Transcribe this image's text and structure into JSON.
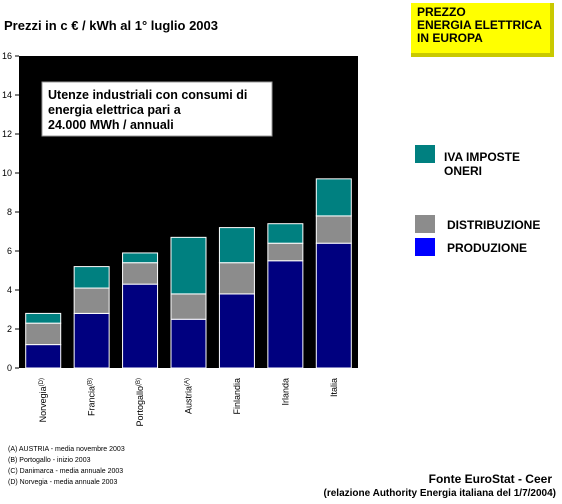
{
  "title": "Prezzi in c € / kWh al 1° luglio 2003",
  "badge": [
    "PREZZO",
    "ENERGIA ELETTRICA",
    "IN EUROPA"
  ],
  "annotation": [
    "Utenze industriali con consumi di",
    "energia elettrica pari a",
    "24.000 MWh / annuali"
  ],
  "notes": [
    "(A) AUSTRIA - media novembre 2003",
    "(B) Portogallo - inizio 2003",
    "(C) Danimarca - media annuale 2003",
    "(D) Norvegia - media annuale 2003"
  ],
  "source": "Fonte EuroStat - Ceer",
  "source_detail": "(relazione Authority Energia italiana del 1/7/2004)",
  "chart_data": {
    "type": "bar",
    "stacked": true,
    "title": "",
    "xlabel": "",
    "ylabel": "",
    "ylim": [
      0,
      16
    ],
    "yticks": [
      0,
      2,
      4,
      6,
      8,
      10,
      12,
      14,
      16
    ],
    "grid": false,
    "categories": [
      "Norvegia",
      "Francia",
      "Portogallo",
      "Austria",
      "Finlandia",
      "Irlanda",
      "Italia"
    ],
    "category_marks": [
      "(D)",
      "(B)",
      "(B)",
      "(A)",
      "",
      "",
      ""
    ],
    "legend_position": "right",
    "series": [
      {
        "name": "PRODUZIONE",
        "color": "#00007f",
        "legend_color": "#0000ff",
        "values": [
          1.2,
          2.8,
          4.3,
          2.5,
          3.8,
          5.5,
          6.4
        ]
      },
      {
        "name": "DISTRIBUZIONE",
        "color": "#8c8c8c",
        "legend_color": "#8c8c8c",
        "values": [
          1.1,
          1.3,
          1.1,
          1.3,
          1.6,
          0.9,
          1.4
        ]
      },
      {
        "name": "IVA  IMPOSTE ONERI",
        "color": "#008080",
        "legend_color": "#008080",
        "values": [
          0.5,
          1.1,
          0.5,
          2.9,
          1.8,
          1.0,
          1.9
        ]
      }
    ],
    "legend_order": [
      "IVA  IMPOSTE ONERI",
      "DISTRIBUZIONE",
      "PRODUZIONE"
    ]
  }
}
